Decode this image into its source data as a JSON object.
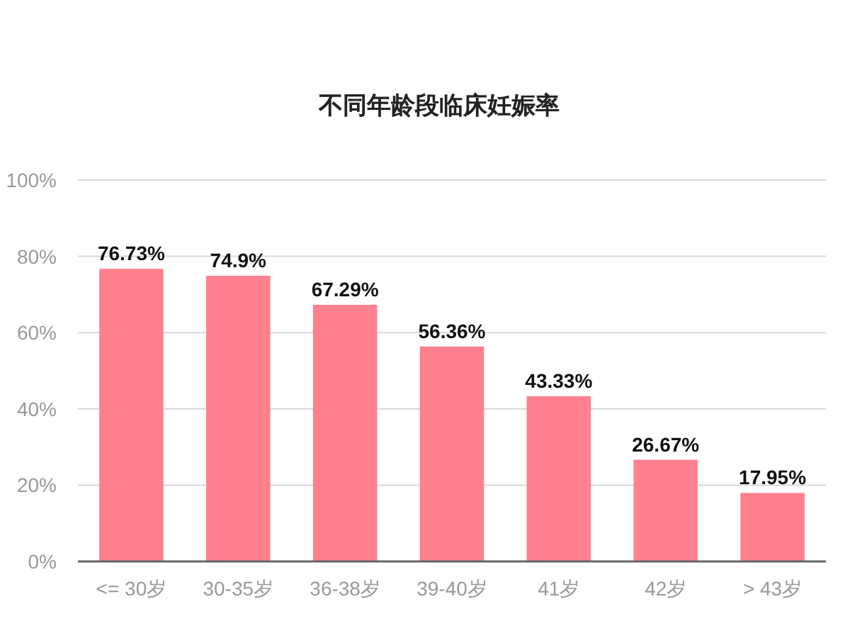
{
  "chart_data": {
    "type": "bar",
    "title": "不同年龄段临床妊娠率",
    "categories": [
      "<= 30岁",
      "30-35岁",
      "36-38岁",
      "39-40岁",
      "41岁",
      "42岁",
      "> 43岁"
    ],
    "values": [
      76.73,
      74.9,
      67.29,
      56.36,
      43.33,
      26.67,
      17.95
    ],
    "value_labels": [
      "76.73%",
      "74.9%",
      "67.29%",
      "56.36%",
      "43.33%",
      "26.67%",
      "17.95%"
    ],
    "color": "#ff808e",
    "ylim": [
      0,
      100
    ],
    "yticks": [
      {
        "value": 0,
        "label": "0%"
      },
      {
        "value": 20,
        "label": "20%"
      },
      {
        "value": 40,
        "label": "40%"
      },
      {
        "value": 60,
        "label": "60%"
      },
      {
        "value": 80,
        "label": "80%"
      },
      {
        "value": 100,
        "label": "100%"
      }
    ],
    "grid": "y"
  }
}
